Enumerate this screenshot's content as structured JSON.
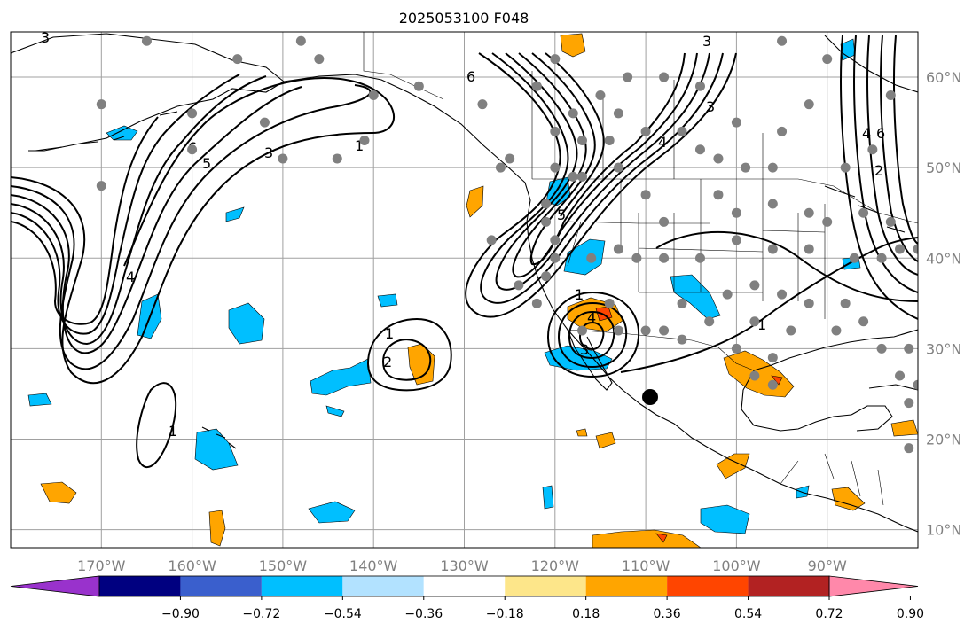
{
  "title": "2025053100 F048",
  "map": {
    "lon_range": [
      -180,
      -80
    ],
    "lat_range": [
      8,
      65
    ],
    "grid": true,
    "lon_ticks": [
      {
        "value": -170,
        "label": "170°W"
      },
      {
        "value": -160,
        "label": "160°W"
      },
      {
        "value": -150,
        "label": "150°W"
      },
      {
        "value": -140,
        "label": "140°W"
      },
      {
        "value": -130,
        "label": "130°W"
      },
      {
        "value": -120,
        "label": "120°W"
      },
      {
        "value": -110,
        "label": "110°W"
      },
      {
        "value": -100,
        "label": "100°W"
      },
      {
        "value": -90,
        "label": "90°W"
      }
    ],
    "lat_ticks": [
      {
        "value": 10,
        "label": "10°N"
      },
      {
        "value": 20,
        "label": "20°N"
      },
      {
        "value": 30,
        "label": "30°N"
      },
      {
        "value": 40,
        "label": "40°N"
      },
      {
        "value": 50,
        "label": "50°N"
      },
      {
        "value": 60,
        "label": "60°N"
      }
    ],
    "contour_labels": [
      "1",
      "2",
      "3",
      "4",
      "5",
      "6"
    ],
    "station_color": "#808080",
    "marker_color": "#000000"
  },
  "colorbar": {
    "colors": [
      "#9932cc",
      "#000080",
      "#3a5fcd",
      "#00bfff",
      "#b2e2ff",
      "#ffffff",
      "#fde68a",
      "#ffa500",
      "#ff4500",
      "#b22222",
      "#ff88aa"
    ],
    "labels": [
      "−0.90",
      "−0.72",
      "−0.54",
      "−0.36",
      "−0.18",
      "0.18",
      "0.36",
      "0.54",
      "0.72",
      "0.90"
    ],
    "extend": "both"
  }
}
